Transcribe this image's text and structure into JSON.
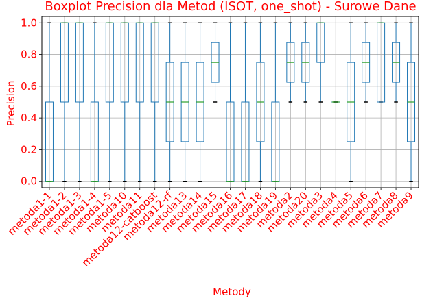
{
  "chart_data": {
    "type": "boxplot",
    "title": "Boxplot Precision dla Metod (ISOT, one_shot) - Surowe Dane",
    "xlabel": "Metody",
    "ylabel": "Precision",
    "ylim": [
      -0.04,
      1.04
    ],
    "yticks": [
      "0.0",
      "0.2",
      "0.4",
      "0.6",
      "0.8",
      "1.0"
    ],
    "grid": true,
    "colors": {
      "box": "#1f77b4",
      "median": "#2ca02c",
      "text": "#ff0000",
      "grid": "#b0b0b0"
    },
    "categories": [
      "metoda1-1",
      "metoda1-2",
      "metoda1-3",
      "metoda1-4",
      "metoda1-5",
      "metoda10",
      "metoda11",
      "metoda12-catboost",
      "metoda12-rf",
      "metoda13",
      "metoda14",
      "metoda15",
      "metoda16",
      "metoda17",
      "metoda18",
      "metoda19",
      "metoda2",
      "metoda20",
      "metoda3",
      "metoda4",
      "metoda5",
      "metoda6",
      "metoda7",
      "metoda8",
      "metoda9"
    ],
    "boxes": [
      {
        "min": 0,
        "q1": 0,
        "median": 0,
        "q3": 0.5,
        "max": 1
      },
      {
        "min": 0,
        "q1": 0.5,
        "median": 1,
        "q3": 1,
        "max": 1
      },
      {
        "min": 0,
        "q1": 0.5,
        "median": 1,
        "q3": 1,
        "max": 1
      },
      {
        "min": 0,
        "q1": 0,
        "median": 0,
        "q3": 0.5,
        "max": 1
      },
      {
        "min": 0,
        "q1": 0.5,
        "median": 1,
        "q3": 1,
        "max": 1
      },
      {
        "min": 0,
        "q1": 0.5,
        "median": 1,
        "q3": 1,
        "max": 1
      },
      {
        "min": 0,
        "q1": 0.5,
        "median": 1,
        "q3": 1,
        "max": 1
      },
      {
        "min": 0,
        "q1": 0.5,
        "median": 1,
        "q3": 1,
        "max": 1
      },
      {
        "min": 0,
        "q1": 0.25,
        "median": 0.5,
        "q3": 0.75,
        "max": 1
      },
      {
        "min": 0,
        "q1": 0.25,
        "median": 0.5,
        "q3": 0.75,
        "max": 1
      },
      {
        "min": 0,
        "q1": 0.25,
        "median": 0.5,
        "q3": 0.75,
        "max": 1
      },
      {
        "min": 0.5,
        "q1": 0.625,
        "median": 0.75,
        "q3": 0.875,
        "max": 1
      },
      {
        "min": 0,
        "q1": 0,
        "median": 0,
        "q3": 0.5,
        "max": 1
      },
      {
        "min": 0,
        "q1": 0,
        "median": 0,
        "q3": 0.5,
        "max": 1
      },
      {
        "min": 0,
        "q1": 0.25,
        "median": 0.5,
        "q3": 0.75,
        "max": 1
      },
      {
        "min": 0,
        "q1": 0,
        "median": 0,
        "q3": 0.5,
        "max": 1
      },
      {
        "min": 0.5,
        "q1": 0.625,
        "median": 0.75,
        "q3": 0.875,
        "max": 1
      },
      {
        "min": 0.5,
        "q1": 0.625,
        "median": 0.75,
        "q3": 0.875,
        "max": 1
      },
      {
        "min": 0.5,
        "q1": 0.75,
        "median": 1,
        "q3": 1,
        "max": 1
      },
      {
        "min": 0.5,
        "q1": 0.5,
        "median": 0.5,
        "q3": 0.5,
        "max": 0.5
      },
      {
        "min": 0,
        "q1": 0.25,
        "median": 0.5,
        "q3": 0.75,
        "max": 1
      },
      {
        "min": 0.5,
        "q1": 0.625,
        "median": 0.75,
        "q3": 0.875,
        "max": 1
      },
      {
        "min": 0.5,
        "q1": 0.5,
        "median": 1,
        "q3": 1,
        "max": 1
      },
      {
        "min": 0.5,
        "q1": 0.625,
        "median": 0.75,
        "q3": 0.875,
        "max": 1
      },
      {
        "min": 0,
        "q1": 0.25,
        "median": 0.5,
        "q3": 0.75,
        "max": 1
      }
    ]
  }
}
